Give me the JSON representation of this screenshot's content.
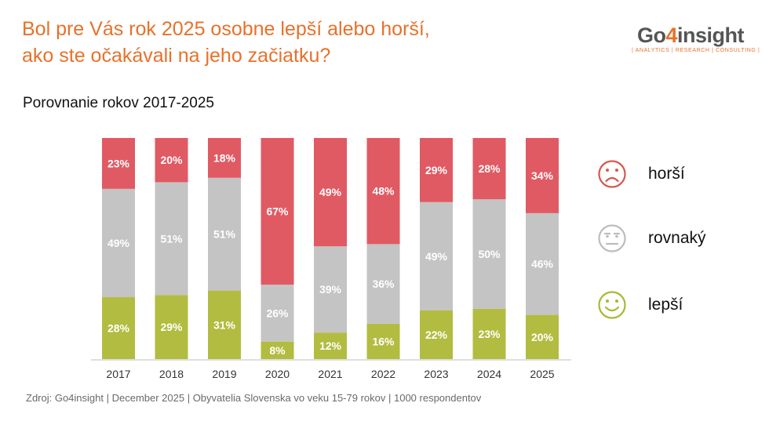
{
  "title_line1": "Bol pre Vás rok 2025 osobne lepší alebo horší,",
  "title_line2": "ako ste očakávali na jeho začiatku?",
  "subtitle": "Porovnanie rokov 2017-2025",
  "logo": {
    "prefix": "Go",
    "four": "4",
    "suffix": "insight",
    "tagline": "| ANALYTICS | RESEARCH | CONSULTING |"
  },
  "source": "Zdroj: Go4insight | December 2025 | Obyvatelia Slovenska vo veku 15-79 rokov | 1000 respondentov",
  "colors": {
    "horsi": "#e05a63",
    "rovnaky": "#c4c4c4",
    "lepsi": "#b2bc40",
    "title": "#e8712a"
  },
  "legend": [
    {
      "key": "horsi",
      "label": "horší",
      "icon": "sad-face-icon"
    },
    {
      "key": "rovnaky",
      "label": "rovnaký",
      "icon": "neutral-face-icon"
    },
    {
      "key": "lepsi",
      "label": "lepší",
      "icon": "smiley-face-icon"
    }
  ],
  "chart_data": {
    "type": "bar",
    "stacked": true,
    "title": "Porovnanie rokov 2017-2025",
    "categories": [
      "2017",
      "2018",
      "2019",
      "2020",
      "2021",
      "2022",
      "2023",
      "2024",
      "2025"
    ],
    "series": [
      {
        "name": "lepší",
        "key": "lepsi",
        "values": [
          28,
          29,
          31,
          8,
          12,
          16,
          22,
          23,
          20
        ]
      },
      {
        "name": "rovnaký",
        "key": "rovnaky",
        "values": [
          49,
          51,
          51,
          26,
          39,
          36,
          49,
          50,
          46
        ]
      },
      {
        "name": "horší",
        "key": "horsi",
        "values": [
          23,
          20,
          18,
          67,
          49,
          48,
          29,
          28,
          34
        ]
      }
    ],
    "value_suffix": "%",
    "ylim": [
      0,
      100
    ],
    "grid": false,
    "legend": "right"
  }
}
